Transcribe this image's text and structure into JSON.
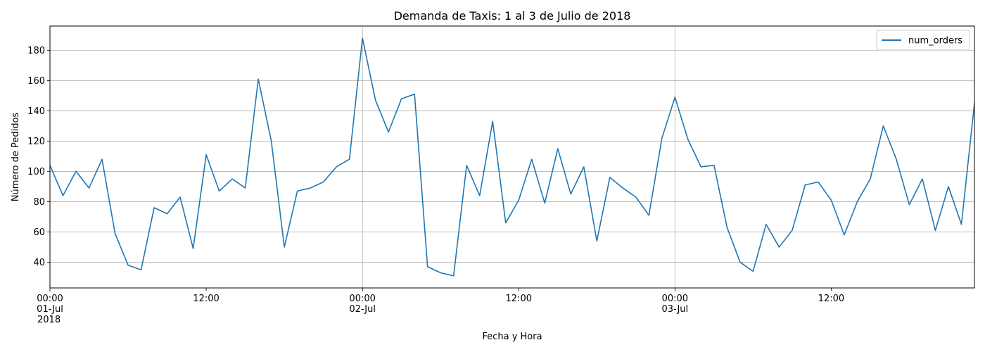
{
  "chart_data": {
    "type": "line",
    "title": "Demanda de Taxis: 1 al 3 de Julio de 2018",
    "xlabel": "Fecha y Hora",
    "ylabel": "Número de Pedidos",
    "x_start": "2018-07-01 00:00",
    "x_end": "2018-07-03 23:00",
    "x_interval": "1 hour",
    "ylim": [
      23,
      196
    ],
    "yticks": [
      40,
      60,
      80,
      100,
      120,
      140,
      160,
      180
    ],
    "xticks": [
      {
        "x": "2018-07-01 00:00",
        "lines": [
          "00:00",
          "01-Jul",
          "2018"
        ],
        "major": true
      },
      {
        "x": "2018-07-01 12:00",
        "lines": [
          "12:00"
        ],
        "major": false
      },
      {
        "x": "2018-07-02 00:00",
        "lines": [
          "00:00",
          "02-Jul"
        ],
        "major": true
      },
      {
        "x": "2018-07-02 12:00",
        "lines": [
          "12:00"
        ],
        "major": false
      },
      {
        "x": "2018-07-03 00:00",
        "lines": [
          "00:00",
          "03-Jul"
        ],
        "major": true
      },
      {
        "x": "2018-07-03 12:00",
        "lines": [
          "12:00"
        ],
        "major": false
      }
    ],
    "grid": true,
    "legend_position": "upper right",
    "series": [
      {
        "name": "num_orders",
        "color": "#1f77b4",
        "values": [
          104,
          84,
          100,
          89,
          108,
          59,
          38,
          35,
          76,
          72,
          83,
          49,
          111,
          87,
          95,
          89,
          161,
          120,
          50,
          87,
          89,
          93,
          103,
          108,
          188,
          147,
          126,
          148,
          151,
          37,
          33,
          31,
          104,
          84,
          133,
          66,
          81,
          108,
          79,
          115,
          85,
          103,
          54,
          96,
          89,
          83,
          71,
          122,
          149,
          121,
          103,
          104,
          63,
          40,
          34,
          65,
          50,
          61,
          91,
          93,
          81,
          58,
          80,
          95,
          130,
          108,
          78,
          95,
          61,
          90,
          65,
          145
        ]
      }
    ]
  }
}
